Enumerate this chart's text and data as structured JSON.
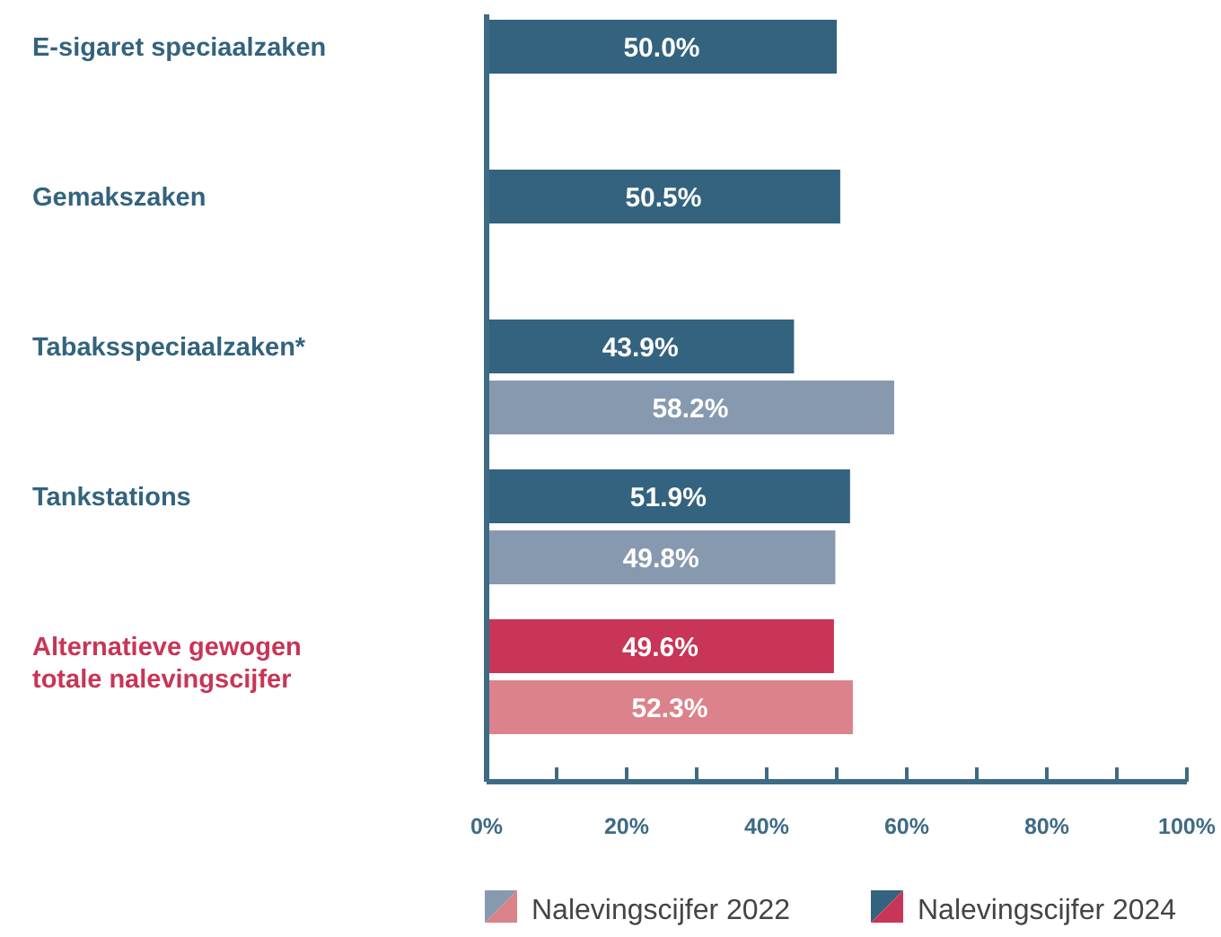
{
  "chart_data": {
    "type": "bar",
    "orientation": "horizontal",
    "categories": [
      "E-sigaret speciaalzaken",
      "Gemakszaken",
      "Tabaksspeciaalzaken*",
      "Tankstations",
      "Alternatieve gewogen totale nalevingscijfer"
    ],
    "series": [
      {
        "name": "Nalevingscijfer 2022",
        "colors": [
          null,
          null,
          "#8799ae",
          "#8799ae",
          "#db828a"
        ],
        "values": [
          null,
          null,
          58.2,
          49.8,
          52.3
        ],
        "value_labels": [
          null,
          null,
          "58.2%",
          "49.8%",
          "52.3%"
        ]
      },
      {
        "name": "Nalevingscijfer 2024",
        "colors": [
          "#33637e",
          "#33637e",
          "#33637e",
          "#33637e",
          "#c83556"
        ],
        "values": [
          50.0,
          50.5,
          43.9,
          51.9,
          49.6
        ],
        "value_labels": [
          "50.0%",
          "50.5%",
          "43.9%",
          "51.9%",
          "49.6%"
        ]
      }
    ],
    "xlim": [
      0,
      100
    ],
    "xticks": [
      {
        "value": 0,
        "label": "0%"
      },
      {
        "value": 10,
        "label": null
      },
      {
        "value": 20,
        "label": "20%"
      },
      {
        "value": 30,
        "label": null
      },
      {
        "value": 40,
        "label": "40%"
      },
      {
        "value": 50,
        "label": null
      },
      {
        "value": 60,
        "label": "60%"
      },
      {
        "value": 70,
        "label": null
      },
      {
        "value": 80,
        "label": "80%"
      },
      {
        "value": 90,
        "label": null
      },
      {
        "value": 100,
        "label": "100%"
      }
    ],
    "grid": false,
    "legend": "bottom"
  }
}
